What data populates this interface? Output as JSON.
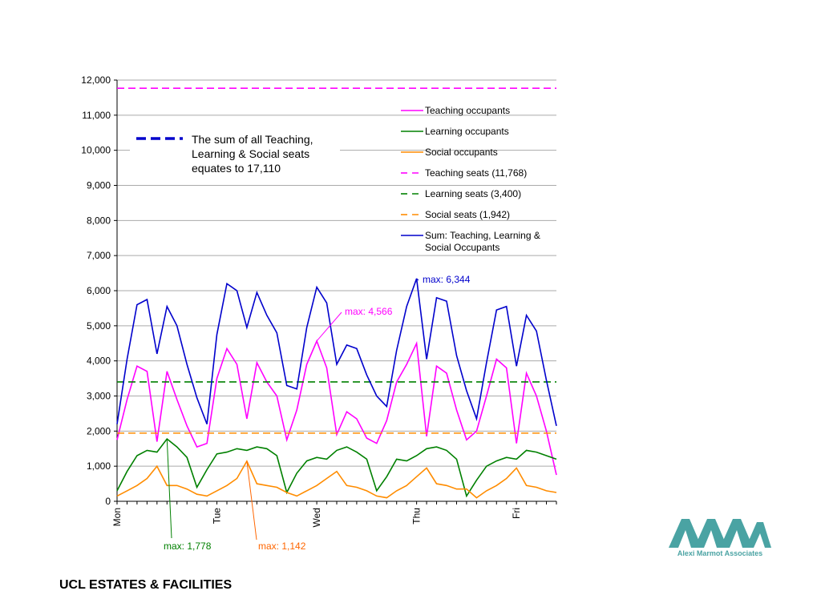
{
  "footer": {
    "title": "UCL ESTATES & FACILITIES"
  },
  "logo": {
    "name": "Alexi Marmot Associates",
    "icon": "ama-logo-icon",
    "color": "#4aa3a3"
  },
  "note": {
    "lines": [
      "The sum of all Teaching,",
      "Learning & Social seats",
      "equates to 17,110"
    ],
    "swatch_color": "#0000cc"
  },
  "annotations": {
    "sum_max": "max: 6,344",
    "teaching_max": "max: 4,566",
    "learning_max": "max: 1,778",
    "social_max": "max: 1,142"
  },
  "chart_data": {
    "type": "line",
    "ylim": [
      0,
      12000
    ],
    "y_ticks": [
      0,
      1000,
      2000,
      3000,
      4000,
      5000,
      6000,
      7000,
      8000,
      9000,
      10000,
      11000,
      12000
    ],
    "y_tick_labels": [
      "0",
      "1,000",
      "2,000",
      "3,000",
      "4,000",
      "5,000",
      "6,000",
      "7,000",
      "8,000",
      "9,000",
      "10,000",
      "11,000",
      "12,000"
    ],
    "x_day_labels": [
      "Mon",
      "Tue",
      "Wed",
      "Thu",
      "Fri"
    ],
    "samples_per_day": 10,
    "grid": true,
    "legend_position": "right",
    "series": [
      {
        "name": "Teaching occupants",
        "color": "#ff00ff",
        "dash": "solid",
        "values": [
          1750,
          2900,
          3850,
          3700,
          1700,
          3700,
          2900,
          2150,
          1550,
          1650,
          3500,
          4350,
          3900,
          2350,
          3950,
          3400,
          3000,
          1750,
          2600,
          3900,
          4566,
          3800,
          1900,
          2550,
          2350,
          1800,
          1650,
          2300,
          3400,
          3900,
          4500,
          1850,
          3850,
          3650,
          2600,
          1750,
          2000,
          3000,
          4050,
          3800,
          1650,
          3650,
          3000,
          2000,
          750
        ]
      },
      {
        "name": "Learning occupants",
        "color": "#008000",
        "dash": "solid",
        "values": [
          300,
          850,
          1300,
          1450,
          1400,
          1778,
          1550,
          1250,
          400,
          900,
          1350,
          1400,
          1500,
          1450,
          1550,
          1500,
          1300,
          250,
          800,
          1150,
          1250,
          1200,
          1450,
          1550,
          1400,
          1200,
          300,
          700,
          1200,
          1150,
          1300,
          1500,
          1550,
          1450,
          1200,
          150,
          600,
          1000,
          1150,
          1250,
          1200,
          1450,
          1400,
          1300,
          1200
        ]
      },
      {
        "name": "Social occupants",
        "color": "#ff8c00",
        "dash": "solid",
        "values": [
          150,
          300,
          450,
          650,
          1000,
          450,
          450,
          350,
          200,
          150,
          300,
          450,
          650,
          1142,
          500,
          450,
          400,
          250,
          150,
          300,
          450,
          650,
          850,
          450,
          400,
          300,
          150,
          100,
          300,
          450,
          700,
          950,
          500,
          450,
          350,
          350,
          100,
          300,
          450,
          650,
          950,
          450,
          400,
          300,
          250
        ]
      },
      {
        "name": "Teaching seats (11,768)",
        "color": "#ff00ff",
        "dash": "dashed",
        "value": 11768
      },
      {
        "name": "Learning seats (3,400)",
        "color": "#008000",
        "dash": "dashed",
        "value": 3400
      },
      {
        "name": "Social seats (1,942)",
        "color": "#ff8c00",
        "dash": "dashed",
        "value": 1942
      },
      {
        "name": "Sum: Teaching, Learning & Social Occupants",
        "color": "#0000cc",
        "dash": "solid",
        "values": [
          2200,
          4050,
          5600,
          5750,
          4200,
          5550,
          5000,
          3900,
          2950,
          2200,
          4750,
          6200,
          6000,
          4950,
          5950,
          5300,
          4800,
          3300,
          3200,
          4950,
          6100,
          5650,
          3900,
          4450,
          4350,
          3600,
          3000,
          2700,
          4300,
          5550,
          6344,
          4050,
          5800,
          5700,
          4150,
          3150,
          2350,
          3950,
          5450,
          5550,
          3850,
          5300,
          4850,
          3450,
          2150
        ]
      }
    ]
  }
}
